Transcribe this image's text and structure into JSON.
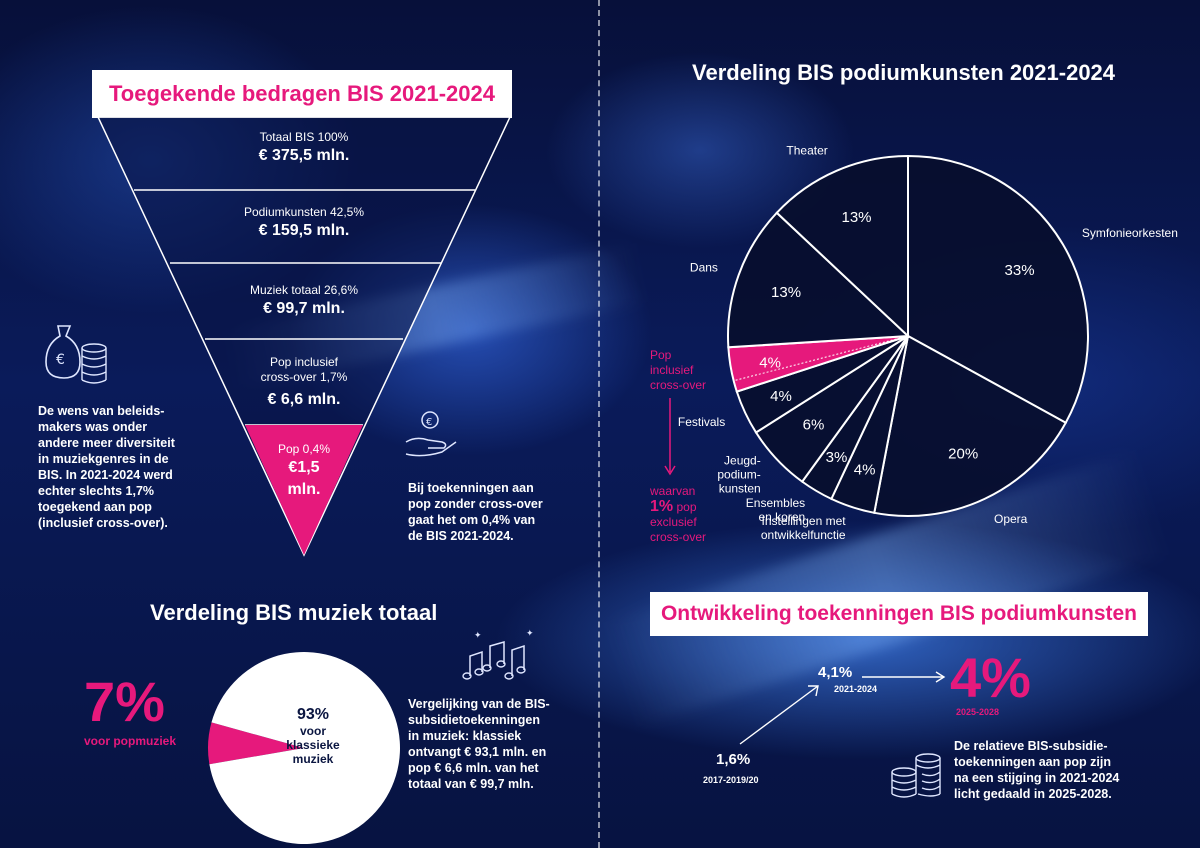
{
  "funnel": {
    "title": "Toegekende bedragen BIS 2021-2024",
    "levels": [
      {
        "label": "Totaal BIS 100%",
        "value": "€ 375,5 mln."
      },
      {
        "label": "Podiumkunsten 42,5%",
        "value": "€ 159,5 mln."
      },
      {
        "label": "Muziek totaal 26,6%",
        "value": "€ 99,7 mln."
      },
      {
        "label": "Pop inclusief",
        "label2": "cross-over 1,7%",
        "value": "€ 6,6 mln."
      },
      {
        "label": "Pop 0,4%",
        "value": "€1,5",
        "value2": "mln."
      }
    ]
  },
  "left_note": "De wens van beleids-|makers was onder|andere meer diversiteit|in muziekgenres in de|BIS. In 2021-2024 werd|echter slechts 1,7%|toegekend aan pop|(inclusief cross-over).",
  "right_note": "Bij toekenningen aan|pop zonder cross-over|gaat het om 0,4% van|de BIS 2021-2024.",
  "music": {
    "title": "Verdeling BIS muziek totaal",
    "pop_pct": "7%",
    "pop_label": "voor popmuziek",
    "classic_pct": "93%",
    "classic_label": "voor|klassieke|muziek",
    "note": "Vergelijking van de BIS-|subsidietoekenningen|in muziek: klassiek|ontvangt € 93,1 mln. en|pop € 6,6 mln. van het|totaal van € 99,7 mln."
  },
  "chart_data": [
    {
      "type": "pie",
      "title": "Verdeling BIS muziek totaal",
      "categories": [
        "voor popmuziek",
        "voor klassieke muziek"
      ],
      "values": [
        7,
        93
      ],
      "colors": [
        "#e6197c",
        "#ffffff"
      ]
    },
    {
      "type": "pie",
      "title": "Verdeling BIS podiumkunsten 2021-2024",
      "categories": [
        "Symfonieorkesten",
        "Opera",
        "Instellingen met ontwikkelfunctie",
        "Ensembles en koren",
        "Jeugd-podium-kunsten",
        "Festivals",
        "Pop inclusief cross-over",
        "Dans",
        "Theater"
      ],
      "values": [
        33,
        20,
        4,
        3,
        6,
        4,
        4,
        13,
        13
      ],
      "labels": [
        "33%",
        "20%",
        "4%",
        "3%",
        "6%",
        "4%",
        "4%",
        "13%",
        "13%"
      ],
      "highlight": "Pop inclusief cross-over",
      "annotation": "waarvan 1% pop exclusief cross-over"
    }
  ],
  "pie2": {
    "title": "Verdeling BIS podiumkunsten 2021-2024",
    "cats": [
      "Theater",
      "Symfonieorkesten",
      "Dans",
      "Opera",
      "Festivals",
      "Jeugd-|podium-|kunsten",
      "Ensembles|en koren",
      "Instellingen met|ontwikkelfunctie"
    ],
    "pop_side": "Pop|inclusief|cross-over",
    "waarvan": "waarvan",
    "one_pct": "1%",
    "pop_word": "pop",
    "exclusief": "exclusief|cross-over"
  },
  "dev": {
    "title": "Ontwikkeling toekenningen BIS podiumkunsten",
    "v1": "1,6%",
    "y1": "2017-2019/20",
    "v2": "4,1%",
    "y2": "2021-2024",
    "v3": "4%",
    "y3": "2025-2028",
    "note": "De relatieve BIS-subsidie-|toekenningen aan pop zijn|na een stijging in 2021-2024|licht gedaald in 2025-2028."
  },
  "colors": {
    "accent": "#e6197c",
    "bg": "#0a1b5a"
  }
}
